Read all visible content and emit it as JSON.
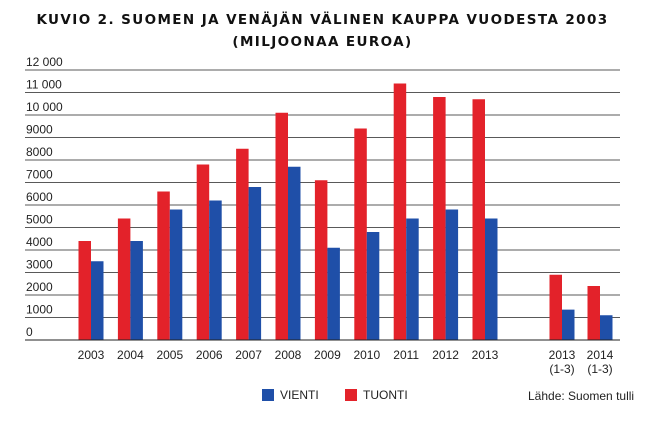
{
  "title_line1": "KUVIO 2. SUOMEN JA VENÄJÄN VÄLINEN KAUPPA VUODESTA 2003",
  "title_line2": "(MILJOONAA EUROA)",
  "source": "Lähde: Suomen tulli",
  "colors": {
    "vienti": "#1f4fa8",
    "tuonti": "#e3222a",
    "grid": "#222222"
  },
  "chart_data": {
    "type": "bar",
    "title": "KUVIO 2. SUOMEN JA VENÄJÄN VÄLINEN KAUPPA VUODESTA 2003 (MILJOONAA EUROA)",
    "categories": [
      {
        "line1": "2003",
        "line2": ""
      },
      {
        "line1": "2004",
        "line2": ""
      },
      {
        "line1": "2005",
        "line2": ""
      },
      {
        "line1": "2006",
        "line2": ""
      },
      {
        "line1": "2007",
        "line2": ""
      },
      {
        "line1": "2008",
        "line2": ""
      },
      {
        "line1": "2009",
        "line2": ""
      },
      {
        "line1": "2010",
        "line2": ""
      },
      {
        "line1": "2011",
        "line2": ""
      },
      {
        "line1": "2012",
        "line2": ""
      },
      {
        "line1": "2013",
        "line2": ""
      },
      {
        "line1": "2013",
        "line2": "(1-3)"
      },
      {
        "line1": "2014",
        "line2": "(1-3)"
      }
    ],
    "series": [
      {
        "name": "VIENTI",
        "values": [
          3500,
          4400,
          5800,
          6200,
          6800,
          7700,
          4100,
          4800,
          5400,
          5800,
          5400,
          1350,
          1100
        ]
      },
      {
        "name": "TUONTI",
        "values": [
          4400,
          5400,
          6600,
          7800,
          8500,
          10100,
          7100,
          9400,
          11400,
          10800,
          10700,
          2900,
          2400
        ]
      }
    ],
    "yticks": [
      {
        "value": 0,
        "label": "0"
      },
      {
        "value": 1000,
        "label": "1000"
      },
      {
        "value": 2000,
        "label": "2000"
      },
      {
        "value": 3000,
        "label": "3000"
      },
      {
        "value": 4000,
        "label": "4000"
      },
      {
        "value": 5000,
        "label": "5000"
      },
      {
        "value": 6000,
        "label": "6000"
      },
      {
        "value": 7000,
        "label": "7000"
      },
      {
        "value": 8000,
        "label": "8000"
      },
      {
        "value": 9000,
        "label": "9000"
      },
      {
        "value": 10000,
        "label": "10 000"
      },
      {
        "value": 11000,
        "label": "11 000"
      },
      {
        "value": 12000,
        "label": "12 000"
      }
    ],
    "ylim": [
      0,
      12000
    ],
    "grid": true,
    "legend_position": "bottom-center"
  }
}
